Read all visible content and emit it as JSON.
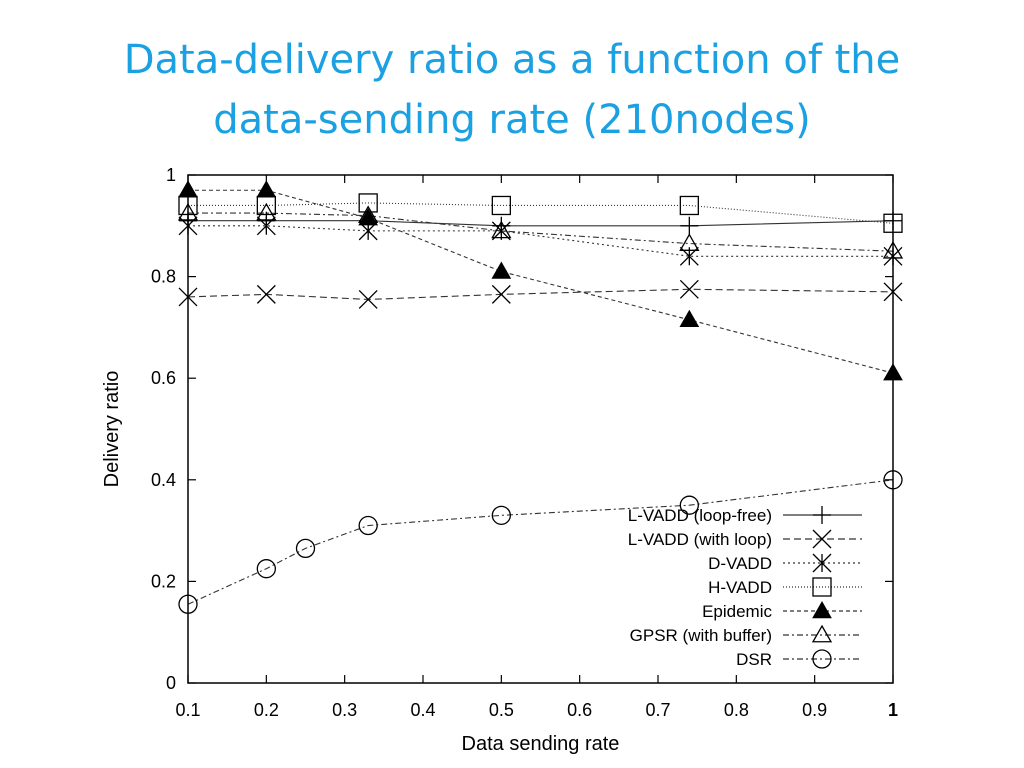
{
  "slide": {
    "title_line1": "Data-delivery ratio as a function of the",
    "title_line2": "data-sending rate (210nodes)",
    "title_color": "#1ba1e2"
  },
  "chart_data": {
    "type": "line",
    "title": "",
    "xlabel": "Data sending rate",
    "ylabel": "Delivery ratio",
    "xlim": [
      0.1,
      1
    ],
    "ylim": [
      0,
      1
    ],
    "x_ticks": [
      "0.1",
      "0.2",
      "0.3",
      "0.4",
      "0.5",
      "0.6",
      "0.7",
      "0.8",
      "0.9",
      "1"
    ],
    "y_ticks": [
      "0",
      "0.2",
      "0.4",
      "0.6",
      "0.8",
      "1"
    ],
    "grid": false,
    "legend_position": "bottom-right",
    "series": [
      {
        "name": "L-VADD (loop-free)",
        "marker": "plus",
        "dash": "solid",
        "x": [
          0.1,
          0.2,
          0.33,
          0.5,
          0.74,
          1
        ],
        "y": [
          0.91,
          0.91,
          0.91,
          0.9,
          0.9,
          0.91
        ]
      },
      {
        "name": "L-VADD (with loop)",
        "marker": "cross",
        "dash": "dashed",
        "x": [
          0.1,
          0.2,
          0.33,
          0.5,
          0.74,
          1
        ],
        "y": [
          0.76,
          0.765,
          0.755,
          0.765,
          0.775,
          0.77
        ]
      },
      {
        "name": "D-VADD",
        "marker": "asterisk",
        "dash": "dotted",
        "x": [
          0.1,
          0.2,
          0.33,
          0.5,
          0.74,
          1
        ],
        "y": [
          0.9,
          0.9,
          0.89,
          0.89,
          0.84,
          0.84
        ]
      },
      {
        "name": "H-VADD",
        "marker": "square",
        "dash": "fine-dotted",
        "x": [
          0.1,
          0.2,
          0.33,
          0.5,
          0.74,
          1
        ],
        "y": [
          0.94,
          0.94,
          0.945,
          0.94,
          0.94,
          0.905
        ]
      },
      {
        "name": "Epidemic",
        "marker": "filled-triangle",
        "dash": "short-dashed",
        "x": [
          0.1,
          0.2,
          0.33,
          0.5,
          0.74,
          1
        ],
        "y": [
          0.97,
          0.97,
          0.915,
          0.81,
          0.715,
          0.61
        ]
      },
      {
        "name": "GPSR (with buffer)",
        "marker": "triangle",
        "dash": "dash-dot",
        "x": [
          0.1,
          0.2,
          0.33,
          0.5,
          0.74,
          1
        ],
        "y": [
          0.925,
          0.925,
          0.92,
          0.89,
          0.865,
          0.85
        ]
      },
      {
        "name": "DSR",
        "marker": "circle",
        "dash": "dash-dot",
        "x": [
          0.1,
          0.2,
          0.25,
          0.33,
          0.5,
          0.74,
          1
        ],
        "y": [
          0.155,
          0.225,
          0.265,
          0.31,
          0.33,
          0.35,
          0.4
        ]
      }
    ]
  }
}
